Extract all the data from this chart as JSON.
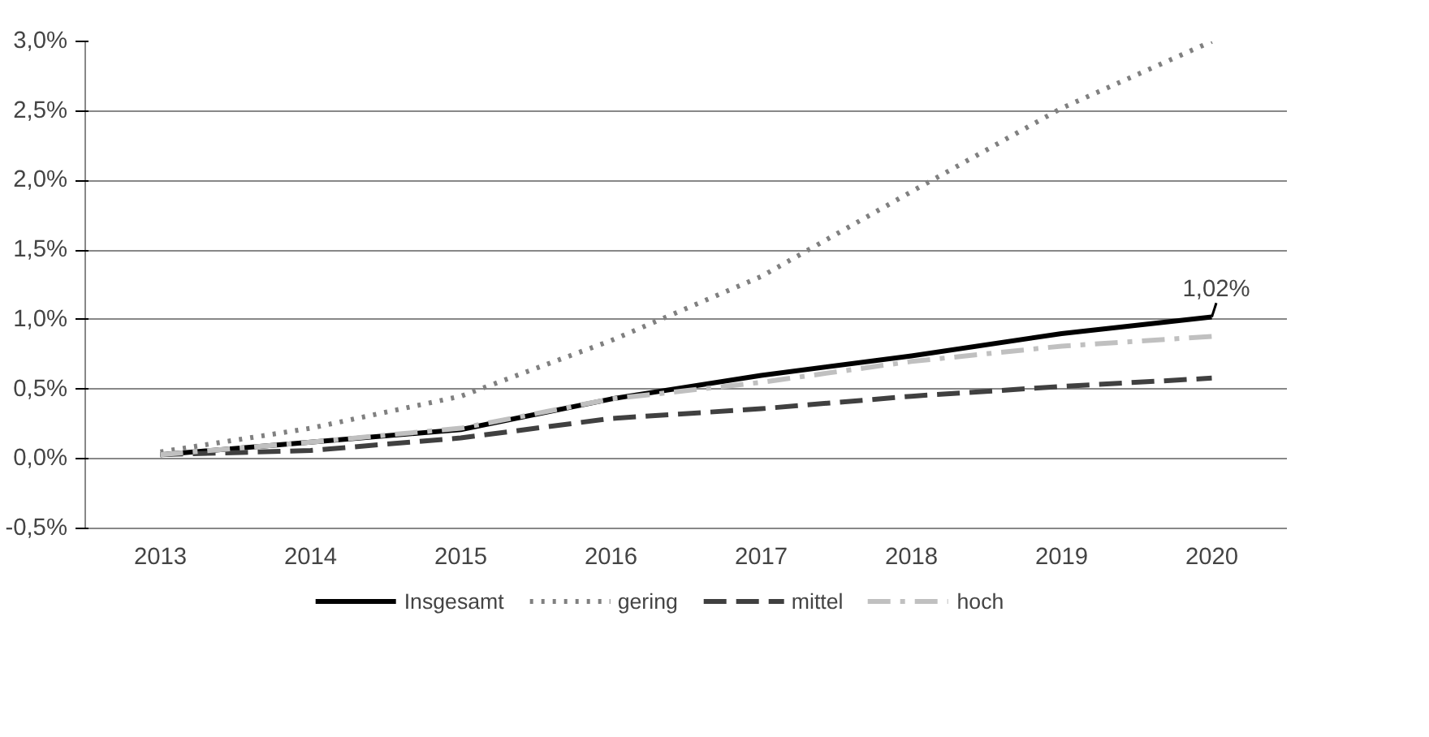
{
  "chart_data": {
    "type": "line",
    "categories": [
      "2013",
      "2014",
      "2015",
      "2016",
      "2017",
      "2018",
      "2019",
      "2020"
    ],
    "series": [
      {
        "name": "Insgesamt",
        "color": "#000000",
        "line_style": "solid",
        "values": [
          0.03,
          0.12,
          0.21,
          0.43,
          0.6,
          0.74,
          0.9,
          1.02
        ]
      },
      {
        "name": "gering",
        "color": "#808080",
        "line_style": "dotted",
        "values": [
          0.05,
          0.22,
          0.45,
          0.85,
          1.31,
          1.92,
          2.52,
          3.0
        ]
      },
      {
        "name": "mittel",
        "color": "#404040",
        "line_style": "dashed",
        "values": [
          0.03,
          0.06,
          0.15,
          0.29,
          0.36,
          0.45,
          0.52,
          0.58
        ]
      },
      {
        "name": "hoch",
        "color": "#c0c0c0",
        "line_style": "dashdot",
        "values": [
          0.03,
          0.12,
          0.22,
          0.43,
          0.55,
          0.7,
          0.81,
          0.88
        ]
      }
    ],
    "ylim": [
      -0.5,
      3.0
    ],
    "yticks": [
      {
        "value": -0.5,
        "label": "-0,5%"
      },
      {
        "value": 0,
        "label": "0,0%"
      },
      {
        "value": 0.5,
        "label": "0,5%"
      },
      {
        "value": 1.0,
        "label": "1,0%"
      },
      {
        "value": 1.5,
        "label": "1,5%"
      },
      {
        "value": 2.0,
        "label": "2,0%"
      },
      {
        "value": 2.5,
        "label": "2,5%"
      },
      {
        "value": 3.0,
        "label": "3,0%"
      }
    ],
    "annotations": [
      {
        "text": "1,02%",
        "x": "2020",
        "y": 1.02
      }
    ],
    "grid": "y",
    "legend": "bottom",
    "marker": "none"
  }
}
